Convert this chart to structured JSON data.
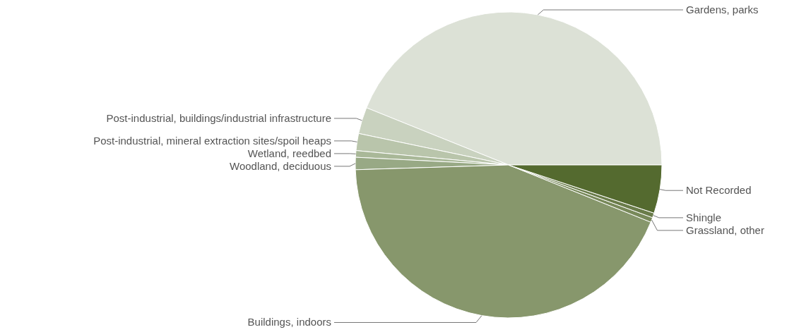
{
  "chart_data": {
    "type": "pie",
    "categories": [
      "Gardens, parks",
      "Post-industrial, buildings/industrial infrastructure",
      "Post-industrial, mineral extraction sites/spoil heaps",
      "Wetland, reedbed",
      "Woodland, deciduous",
      "Buildings, indoors",
      "Grassland, other",
      "Shingle",
      "Not Recorded"
    ],
    "values": [
      43.9,
      2.8,
      1.8,
      0.7,
      1.3,
      43.4,
      0.5,
      0.5,
      5.1
    ],
    "colors": [
      "#dce1d6",
      "#c9d2bf",
      "#b9c5ab",
      "#a9b898",
      "#98a985",
      "#87976c",
      "#78895a",
      "#6a7c4a",
      "#546a2f"
    ]
  }
}
